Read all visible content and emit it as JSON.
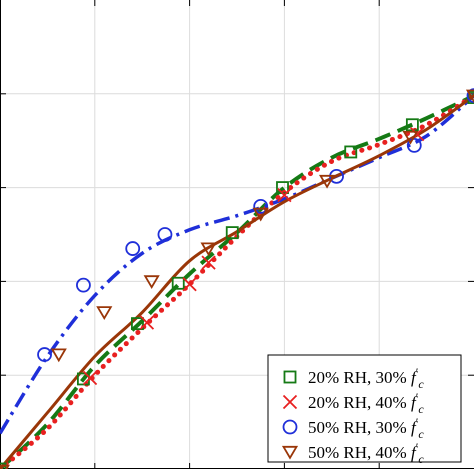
{
  "chart_data": {
    "type": "line",
    "title": "",
    "xlabel": "",
    "ylabel": "",
    "xlim": [
      0,
      5
    ],
    "ylim": [
      0,
      5
    ],
    "grid": true,
    "legend_position": "bottom-right",
    "colors": {
      "series_20rh_30": "#157a15",
      "series_20rh_40": "#e82020",
      "series_50rh_30": "#1f2fd9",
      "series_50rh_40": "#9a3608"
    },
    "series": [
      {
        "name": "20% RH, 30% f'c",
        "marker": "square",
        "line_style": "dashed",
        "points": [
          [
            0.0,
            0.0
          ],
          [
            0.88,
            0.96
          ],
          [
            1.45,
            1.55
          ],
          [
            1.88,
            1.98
          ],
          [
            2.45,
            2.52
          ],
          [
            2.98,
            3.0
          ],
          [
            3.7,
            3.38
          ],
          [
            4.35,
            3.67
          ],
          [
            5.0,
            3.96
          ]
        ],
        "curve": [
          [
            0.0,
            0.0
          ],
          [
            0.5,
            0.48
          ],
          [
            1.0,
            1.1
          ],
          [
            1.5,
            1.58
          ],
          [
            2.0,
            2.08
          ],
          [
            2.5,
            2.52
          ],
          [
            3.0,
            3.0
          ],
          [
            3.5,
            3.32
          ],
          [
            4.0,
            3.52
          ],
          [
            4.5,
            3.74
          ],
          [
            5.0,
            3.98
          ]
        ]
      },
      {
        "name": "20% RH, 40% f'c",
        "marker": "x",
        "line_style": "dotted",
        "points": [
          [
            0.95,
            0.97
          ],
          [
            1.55,
            1.56
          ],
          [
            2.0,
            1.97
          ],
          [
            2.2,
            2.2
          ],
          [
            3.0,
            2.92
          ],
          [
            4.4,
            3.57
          ]
        ],
        "curve": [
          [
            0.0,
            0.0
          ],
          [
            0.5,
            0.43
          ],
          [
            1.0,
            1.0
          ],
          [
            1.5,
            1.5
          ],
          [
            2.0,
            1.97
          ],
          [
            2.5,
            2.48
          ],
          [
            3.0,
            2.95
          ],
          [
            3.5,
            3.28
          ],
          [
            4.0,
            3.46
          ],
          [
            4.5,
            3.67
          ],
          [
            5.0,
            3.98
          ]
        ]
      },
      {
        "name": "50% RH, 30% f'c",
        "marker": "circle",
        "line_style": "dash-dot",
        "points": [
          [
            0.47,
            1.22
          ],
          [
            0.88,
            1.96
          ],
          [
            1.4,
            2.35
          ],
          [
            1.74,
            2.5
          ],
          [
            2.75,
            2.8
          ],
          [
            3.55,
            3.12
          ],
          [
            4.37,
            3.45
          ],
          [
            5.0,
            3.98
          ]
        ],
        "curve": [
          [
            0.0,
            0.38
          ],
          [
            0.5,
            1.2
          ],
          [
            1.0,
            1.85
          ],
          [
            1.5,
            2.3
          ],
          [
            2.0,
            2.55
          ],
          [
            2.5,
            2.7
          ],
          [
            3.0,
            2.88
          ],
          [
            3.5,
            3.1
          ],
          [
            4.0,
            3.32
          ],
          [
            4.5,
            3.55
          ],
          [
            5.0,
            3.98
          ]
        ]
      },
      {
        "name": "50% RH, 40% f'c",
        "marker": "triangle-down",
        "line_style": "solid",
        "points": [
          [
            0.02,
            -0.02
          ],
          [
            0.62,
            1.22
          ],
          [
            1.1,
            1.67
          ],
          [
            1.6,
            2.0
          ],
          [
            2.2,
            2.35
          ],
          [
            2.75,
            2.72
          ],
          [
            3.45,
            3.07
          ],
          [
            4.33,
            3.54
          ],
          [
            5.0,
            3.98
          ]
        ],
        "curve": [
          [
            0.0,
            0.0
          ],
          [
            0.5,
            0.6
          ],
          [
            1.0,
            1.2
          ],
          [
            1.5,
            1.67
          ],
          [
            2.0,
            2.22
          ],
          [
            2.5,
            2.53
          ],
          [
            3.0,
            2.85
          ],
          [
            3.5,
            3.1
          ],
          [
            4.0,
            3.34
          ],
          [
            4.5,
            3.62
          ],
          [
            5.0,
            3.98
          ]
        ]
      }
    ]
  },
  "legend": {
    "entries": [
      {
        "text": "20% RH, 30% ",
        "sym": "f",
        "sup": "′",
        "sub": "c"
      },
      {
        "text": "20% RH, 40% ",
        "sym": "f",
        "sup": "′",
        "sub": "c"
      },
      {
        "text": "50% RH, 30% ",
        "sym": "f",
        "sup": "′",
        "sub": "c"
      },
      {
        "text": "50% RH, 40% ",
        "sym": "f",
        "sup": "′",
        "sub": "c"
      }
    ]
  }
}
